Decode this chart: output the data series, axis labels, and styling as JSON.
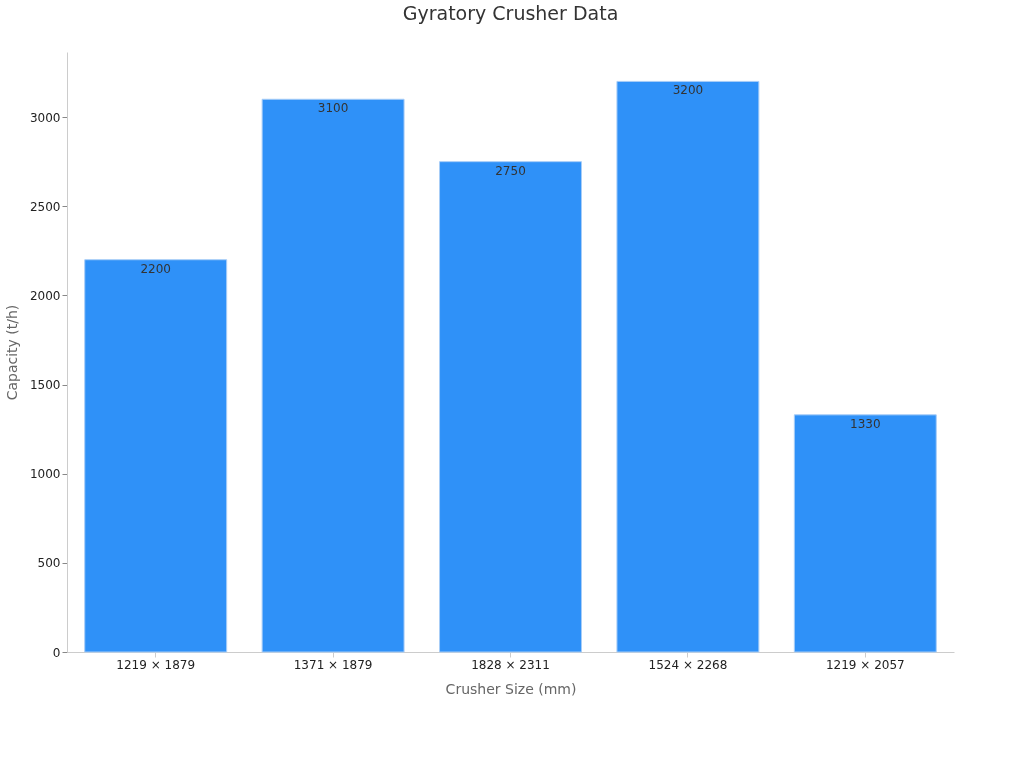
{
  "chart_data": {
    "type": "bar",
    "title": "Gyratory Crusher Data",
    "xlabel": "Crusher Size (mm)",
    "ylabel": "Capacity (t/h)",
    "categories": [
      "1219 × 1879",
      "1371 × 1879",
      "1828 × 2311",
      "1524 × 2268",
      "1219 × 2057"
    ],
    "values": [
      2200,
      3100,
      2750,
      3200,
      1330
    ],
    "color": "#2f91f8",
    "ylim": [
      0,
      3365
    ],
    "yticks": [
      0,
      500,
      1000,
      1500,
      2000,
      2500,
      3000
    ],
    "grid": false,
    "data_labels": true
  }
}
